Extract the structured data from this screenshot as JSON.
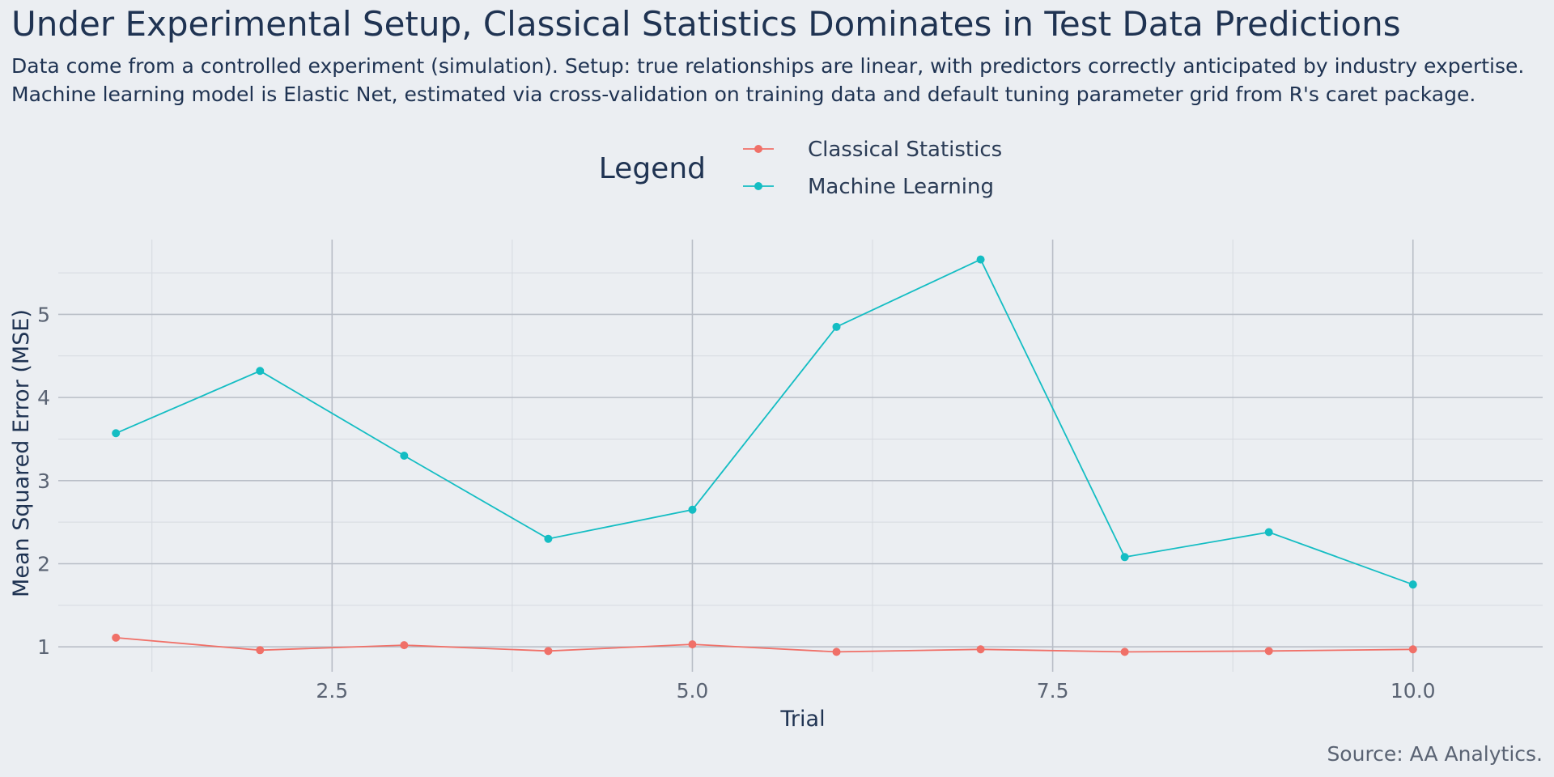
{
  "colors": {
    "background": "#ebeef2",
    "text": "#1f3352",
    "classical": "#f07068",
    "ml": "#14bdc3"
  },
  "chart_data": {
    "type": "line",
    "title": "Under Experimental Setup, Classical Statistics Dominates in Test Data Predictions",
    "subtitle": [
      "Data come from a controlled experiment (simulation). Setup: true relationships are linear, with predictors correctly anticipated by industry expertise.",
      "Machine learning model is Elastic Net, estimated via cross-validation on training data and default tuning parameter grid from R's caret package."
    ],
    "xlabel": "Trial",
    "ylabel": "Mean Squared Error (MSE)",
    "caption": "Source: AA Analytics.",
    "legend_title": "Legend",
    "legend_position": "top",
    "x": [
      1,
      2,
      3,
      4,
      5,
      6,
      7,
      8,
      9,
      10
    ],
    "xlim": [
      0.6,
      10.9
    ],
    "ylim": [
      0.7,
      5.9
    ],
    "x_ticks": [
      2.5,
      5.0,
      7.5,
      10.0
    ],
    "x_tick_labels": [
      "2.5",
      "5.0",
      "7.5",
      "10.0"
    ],
    "x_minor_ticks": [
      1.25,
      3.75,
      6.25,
      8.75
    ],
    "y_ticks": [
      1,
      2,
      3,
      4,
      5
    ],
    "y_tick_labels": [
      "1",
      "2",
      "3",
      "4",
      "5"
    ],
    "y_minor_ticks": [
      1.5,
      2.5,
      3.5,
      4.5,
      5.5
    ],
    "grid": true,
    "series": [
      {
        "name": "Classical Statistics",
        "color": "#f07068",
        "values": [
          1.11,
          0.96,
          1.02,
          0.95,
          1.03,
          0.94,
          0.97,
          0.94,
          0.95,
          0.97
        ]
      },
      {
        "name": "Machine Learning",
        "color": "#14bdc3",
        "values": [
          3.57,
          4.32,
          3.3,
          2.3,
          2.65,
          4.85,
          5.66,
          2.08,
          2.38,
          1.75
        ]
      }
    ]
  }
}
